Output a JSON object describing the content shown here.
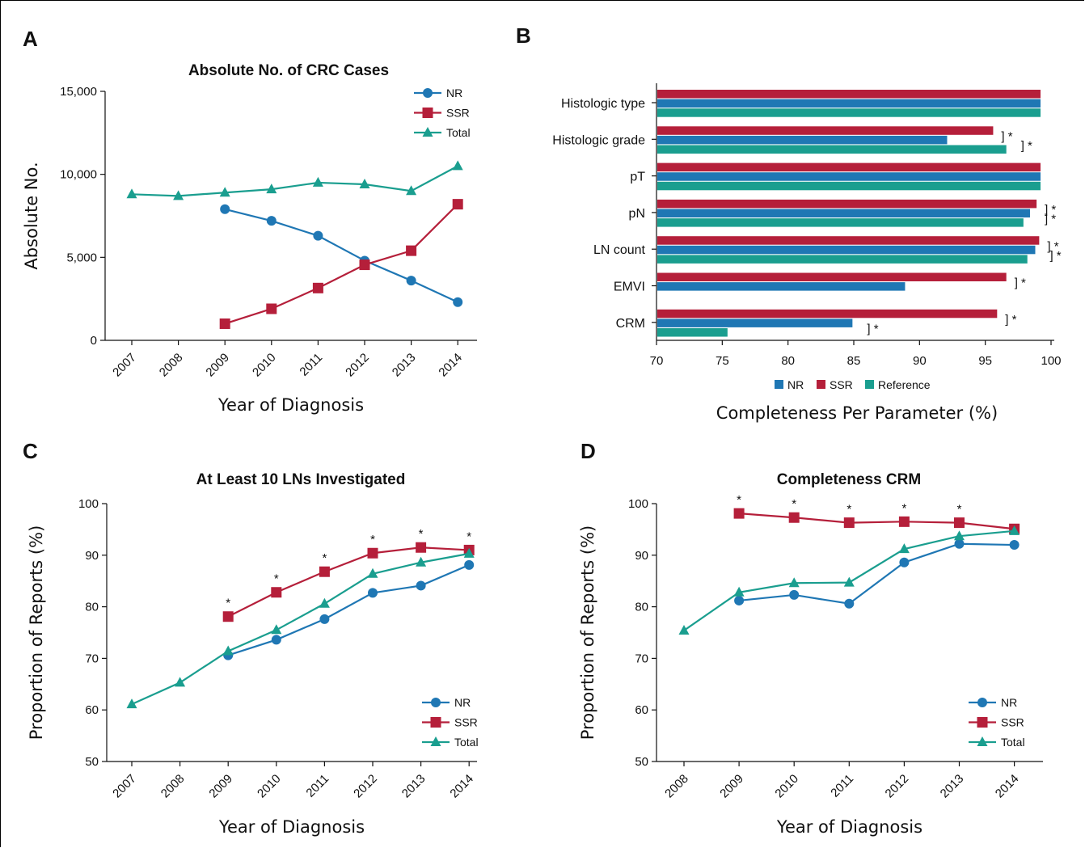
{
  "colors": {
    "NR": "#1f77b4",
    "SSR": "#b51f3a",
    "Total": "#1a9e8f",
    "Reference": "#1a9e8f"
  },
  "panels": [
    {
      "letter": "A"
    },
    {
      "letter": "B"
    },
    {
      "letter": "C"
    },
    {
      "letter": "D"
    }
  ],
  "chart_data": [
    {
      "panel": "A",
      "type": "line",
      "title": "Absolute No. of CRC Cases",
      "xlabel": "Year of Diagnosis",
      "ylabel": "Absolute No.",
      "ylim": [
        0,
        15000
      ],
      "yticks": [
        "0",
        "5,000",
        "10,000",
        "15,000"
      ],
      "x": [
        "2007",
        "2008",
        "2009",
        "2010",
        "2011",
        "2012",
        "2013",
        "2014"
      ],
      "legend_position": "top-right",
      "series": [
        {
          "name": "NR",
          "marker": "circle",
          "values": [
            null,
            null,
            7900,
            7200,
            6300,
            4800,
            3600,
            2300
          ]
        },
        {
          "name": "SSR",
          "marker": "square",
          "values": [
            null,
            null,
            1000,
            1900,
            3150,
            4550,
            5400,
            8200
          ]
        },
        {
          "name": "Total",
          "marker": "triangle",
          "values": [
            8800,
            8700,
            8900,
            9100,
            9500,
            9400,
            9000,
            10500
          ]
        }
      ]
    },
    {
      "panel": "B",
      "type": "bar",
      "orientation": "horizontal",
      "xlabel": "Completeness Per Parameter (%)",
      "xlim": [
        70,
        100
      ],
      "xticks": [
        "70",
        "75",
        "80",
        "85",
        "90",
        "95",
        "100"
      ],
      "categories": [
        "Histologic type",
        "Histologic grade",
        "pT",
        "pN",
        "LN count",
        "EMVI",
        "CRM"
      ],
      "legend_position": "bottom",
      "series": [
        {
          "name": "SSR",
          "values": [
            99.2,
            95.6,
            99.2,
            98.9,
            99.1,
            96.6,
            95.9
          ]
        },
        {
          "name": "NR",
          "values": [
            99.2,
            92.1,
            99.2,
            98.4,
            98.8,
            88.9,
            84.9
          ]
        },
        {
          "name": "Reference",
          "values": [
            99.2,
            96.6,
            99.2,
            97.9,
            98.2,
            null,
            75.4
          ]
        }
      ],
      "annotations": [
        {
          "category": "Histologic grade",
          "text": "] *",
          "pair": "SSR-NR"
        },
        {
          "category": "Histologic grade",
          "text": "] *",
          "pair": "NR-Reference"
        },
        {
          "category": "pN",
          "text": "] *",
          "pair": "SSR-NR"
        },
        {
          "category": "pN",
          "text": "] *",
          "pair": "NR-Reference"
        },
        {
          "category": "LN count",
          "text": "] *",
          "pair": "SSR-NR"
        },
        {
          "category": "LN count",
          "text": "] *",
          "pair": "NR-Reference"
        },
        {
          "category": "EMVI",
          "text": "] *",
          "pair": "SSR-NR"
        },
        {
          "category": "CRM",
          "text": "] *",
          "pair": "SSR-NR"
        },
        {
          "category": "CRM",
          "text": "] *",
          "pair": "NR-Reference"
        }
      ]
    },
    {
      "panel": "C",
      "type": "line",
      "title": "At Least 10 LNs Investigated",
      "xlabel": "Year of Diagnosis",
      "ylabel": "Proportion of Reports (%)",
      "ylim": [
        50,
        100
      ],
      "yticks": [
        "50",
        "60",
        "70",
        "80",
        "90",
        "100"
      ],
      "x": [
        "2007",
        "2008",
        "2009",
        "2010",
        "2011",
        "2012",
        "2013",
        "2014"
      ],
      "legend_position": "bottom-right",
      "series": [
        {
          "name": "NR",
          "marker": "circle",
          "values": [
            null,
            null,
            70.6,
            73.6,
            77.6,
            82.7,
            84.1,
            88.1
          ]
        },
        {
          "name": "SSR",
          "marker": "square",
          "values": [
            null,
            null,
            78.1,
            82.8,
            86.8,
            90.4,
            91.5,
            91.0
          ]
        },
        {
          "name": "Total",
          "marker": "triangle",
          "values": [
            61.1,
            65.3,
            71.4,
            75.5,
            80.6,
            86.4,
            88.6,
            90.3
          ]
        }
      ],
      "significance_marks": [
        "2009",
        "2010",
        "2011",
        "2012",
        "2013",
        "2014"
      ],
      "significance_symbol": "*"
    },
    {
      "panel": "D",
      "type": "line",
      "title": "Completeness CRM",
      "xlabel": "Year of Diagnosis",
      "ylabel": "Proportion of Reports (%)",
      "ylim": [
        50,
        100
      ],
      "yticks": [
        "50",
        "60",
        "70",
        "80",
        "90",
        "100"
      ],
      "x": [
        "2008",
        "2009",
        "2010",
        "2011",
        "2012",
        "2013",
        "2014"
      ],
      "legend_position": "bottom-right",
      "series": [
        {
          "name": "NR",
          "marker": "circle",
          "values": [
            null,
            81.2,
            82.3,
            80.6,
            88.6,
            92.2,
            92.0
          ]
        },
        {
          "name": "SSR",
          "marker": "square",
          "values": [
            null,
            98.1,
            97.3,
            96.3,
            96.5,
            96.3,
            95.1
          ]
        },
        {
          "name": "Total",
          "marker": "triangle",
          "values": [
            75.4,
            82.8,
            84.6,
            84.7,
            91.2,
            93.7,
            94.7
          ]
        }
      ],
      "significance_marks": [
        "2009",
        "2010",
        "2011",
        "2012",
        "2013"
      ],
      "significance_symbol": "*"
    }
  ]
}
